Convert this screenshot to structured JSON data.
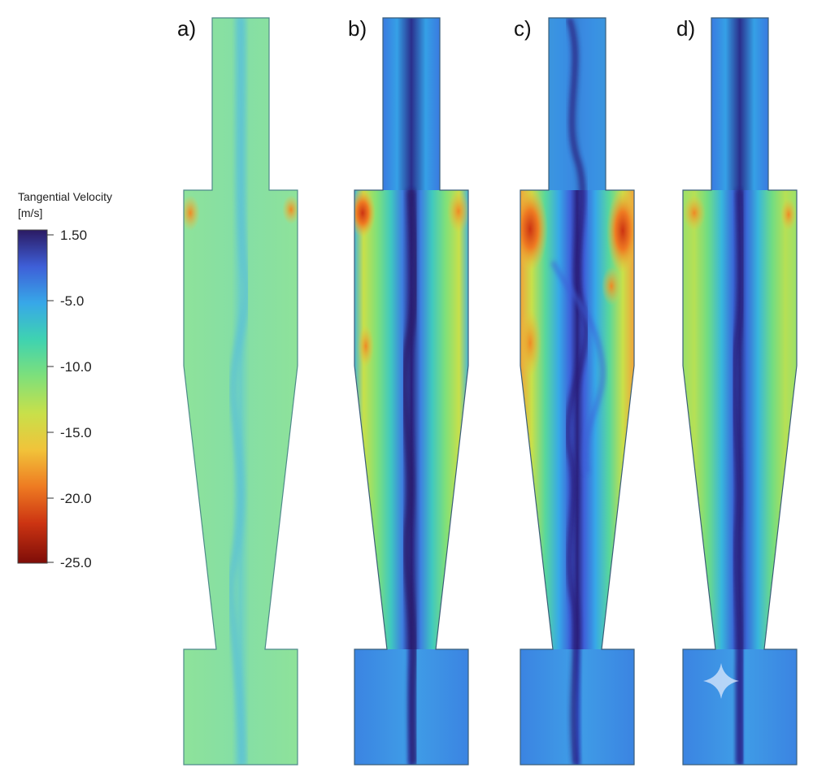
{
  "legend": {
    "title_line1": "Tangential Velocity",
    "title_line2": "[m/s]",
    "ticks": [
      "1.50",
      "-5.0",
      "-10.0",
      "-15.0",
      "-20.0",
      "-25.0"
    ],
    "gradient_colors": [
      "#2b1a63",
      "#3e5fd8",
      "#37a8e8",
      "#3fd3b0",
      "#7fe07a",
      "#c8e04a",
      "#f1c33a",
      "#ee7b22",
      "#cc3412",
      "#7e0d08"
    ]
  },
  "panels": [
    {
      "label": "a)"
    },
    {
      "label": "b)"
    },
    {
      "label": "c)"
    },
    {
      "label": "d)"
    }
  ]
}
